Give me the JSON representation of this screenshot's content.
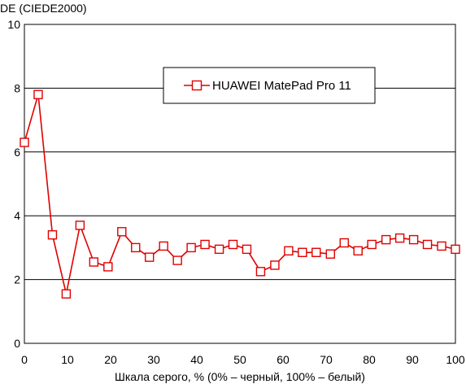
{
  "chart_data": {
    "type": "line",
    "title": "",
    "ylabel": "DE (CIEDE2000)",
    "xlabel": "Шкала серого, % (0% – черный, 100% – белый)",
    "xlim": [
      0,
      100
    ],
    "ylim": [
      0,
      10
    ],
    "x_ticks": [
      0,
      10,
      20,
      30,
      40,
      50,
      60,
      70,
      80,
      90,
      100
    ],
    "y_ticks": [
      0,
      2,
      4,
      6,
      8,
      10
    ],
    "grid": "horizontal",
    "legend_position": "top-center",
    "series": [
      {
        "name": "HUAWEI MatePad Pro 11",
        "color": "#e00000",
        "marker": "square",
        "x": [
          0,
          3.2,
          6.5,
          9.7,
          12.9,
          16.1,
          19.4,
          22.6,
          25.8,
          29.0,
          32.3,
          35.5,
          38.7,
          41.9,
          45.2,
          48.4,
          51.6,
          54.8,
          58.1,
          61.3,
          64.5,
          67.7,
          71.0,
          74.2,
          77.4,
          80.6,
          83.9,
          87.1,
          90.3,
          93.5,
          96.8,
          100
        ],
        "values": [
          6.3,
          7.8,
          3.4,
          1.55,
          3.7,
          2.55,
          2.4,
          3.5,
          3.0,
          2.7,
          3.05,
          2.6,
          3.0,
          3.1,
          2.95,
          3.1,
          2.95,
          2.25,
          2.45,
          2.9,
          2.85,
          2.85,
          2.8,
          3.15,
          2.9,
          3.1,
          3.25,
          3.3,
          3.25,
          3.1,
          3.05,
          2.95
        ]
      }
    ]
  }
}
